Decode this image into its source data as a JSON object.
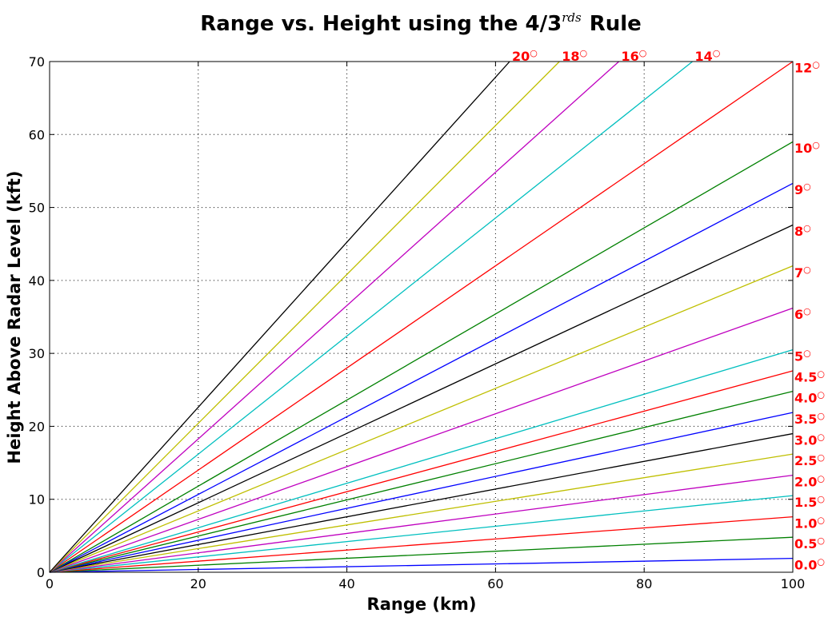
{
  "chart_data": {
    "type": "line",
    "title": "Range vs. Height using the 4/3",
    "title_superscript": "rds",
    "title_suffix": "Rule",
    "xlabel": "Range (km)",
    "ylabel": "Height Above Radar Level (kft)",
    "xlim": [
      0,
      100
    ],
    "ylim": [
      0,
      70
    ],
    "xticks": [
      0,
      20,
      40,
      60,
      80,
      100
    ],
    "yticks": [
      0,
      10,
      20,
      30,
      40,
      50,
      60,
      70
    ],
    "grid": true,
    "colors": {
      "blue": "#0000ff",
      "green": "#008000",
      "red": "#ff0000",
      "cyan": "#00bfbf",
      "magenta": "#bf00bf",
      "yellow": "#bfbf00",
      "black": "#000000",
      "label": "#ff0000"
    },
    "series": [
      {
        "label": "0.0",
        "color": "#0000ff",
        "x": [
          0,
          100
        ],
        "y": [
          0,
          1.9
        ],
        "label_y": 0.4
      },
      {
        "label": "0.5",
        "color": "#008000",
        "x": [
          0,
          100
        ],
        "y": [
          0,
          4.8
        ],
        "label_y": 3.3
      },
      {
        "label": "1.0",
        "color": "#ff0000",
        "x": [
          0,
          100
        ],
        "y": [
          0,
          7.6
        ],
        "label_y": 6.1
      },
      {
        "label": "1.5",
        "color": "#00bfbf",
        "x": [
          0,
          100
        ],
        "y": [
          0,
          10.5
        ],
        "label_y": 9.0
      },
      {
        "label": "2.0",
        "color": "#bf00bf",
        "x": [
          0,
          100
        ],
        "y": [
          0,
          13.3
        ],
        "label_y": 11.8
      },
      {
        "label": "2.5",
        "color": "#bfbf00",
        "x": [
          0,
          100
        ],
        "y": [
          0,
          16.2
        ],
        "label_y": 14.7
      },
      {
        "label": "3.0",
        "color": "#000000",
        "x": [
          0,
          100
        ],
        "y": [
          0,
          19.0
        ],
        "label_y": 17.5
      },
      {
        "label": "3.5",
        "color": "#0000ff",
        "x": [
          0,
          100
        ],
        "y": [
          0,
          21.9
        ],
        "label_y": 20.4
      },
      {
        "label": "4.0",
        "color": "#008000",
        "x": [
          0,
          100
        ],
        "y": [
          0,
          24.8
        ],
        "label_y": 23.3
      },
      {
        "label": "4.5",
        "color": "#ff0000",
        "x": [
          0,
          100
        ],
        "y": [
          0,
          27.6
        ],
        "label_y": 26.1
      },
      {
        "label": "5",
        "color": "#00bfbf",
        "x": [
          0,
          100
        ],
        "y": [
          0,
          30.5
        ],
        "label_y": 29.0
      },
      {
        "label": "6",
        "color": "#bf00bf",
        "x": [
          0,
          100
        ],
        "y": [
          0,
          36.2
        ],
        "label_y": 34.7
      },
      {
        "label": "7",
        "color": "#bfbf00",
        "x": [
          0,
          100
        ],
        "y": [
          0,
          42.0
        ],
        "label_y": 40.4
      },
      {
        "label": "8",
        "color": "#000000",
        "x": [
          0,
          100
        ],
        "y": [
          0,
          47.6
        ],
        "label_y": 46.1
      },
      {
        "label": "9",
        "color": "#0000ff",
        "x": [
          0,
          100
        ],
        "y": [
          0,
          53.3
        ],
        "label_y": 51.8
      },
      {
        "label": "10",
        "color": "#008000",
        "x": [
          0,
          100
        ],
        "y": [
          0,
          59.0
        ],
        "label_y": 57.5
      },
      {
        "label": "12",
        "color": "#ff0000",
        "x": [
          0,
          100
        ],
        "y": [
          0,
          70.0
        ],
        "label_y": 68.5
      },
      {
        "label": "14",
        "color": "#00bfbf",
        "x": [
          0,
          86.5
        ],
        "y": [
          0,
          70.0
        ]
      },
      {
        "label": "16",
        "color": "#bf00bf",
        "x": [
          0,
          76.6
        ],
        "y": [
          0,
          70.0
        ]
      },
      {
        "label": "18",
        "color": "#bfbf00",
        "x": [
          0,
          68.6
        ],
        "y": [
          0,
          70.0
        ]
      },
      {
        "label": "20",
        "color": "#000000",
        "x": [
          0,
          61.9
        ],
        "y": [
          0,
          70.0
        ]
      }
    ],
    "top_labels": [
      {
        "label": "20",
        "x": 62.0
      },
      {
        "label": "18",
        "x": 68.7
      },
      {
        "label": "16",
        "x": 76.7
      },
      {
        "label": "14",
        "x": 86.6
      }
    ]
  }
}
